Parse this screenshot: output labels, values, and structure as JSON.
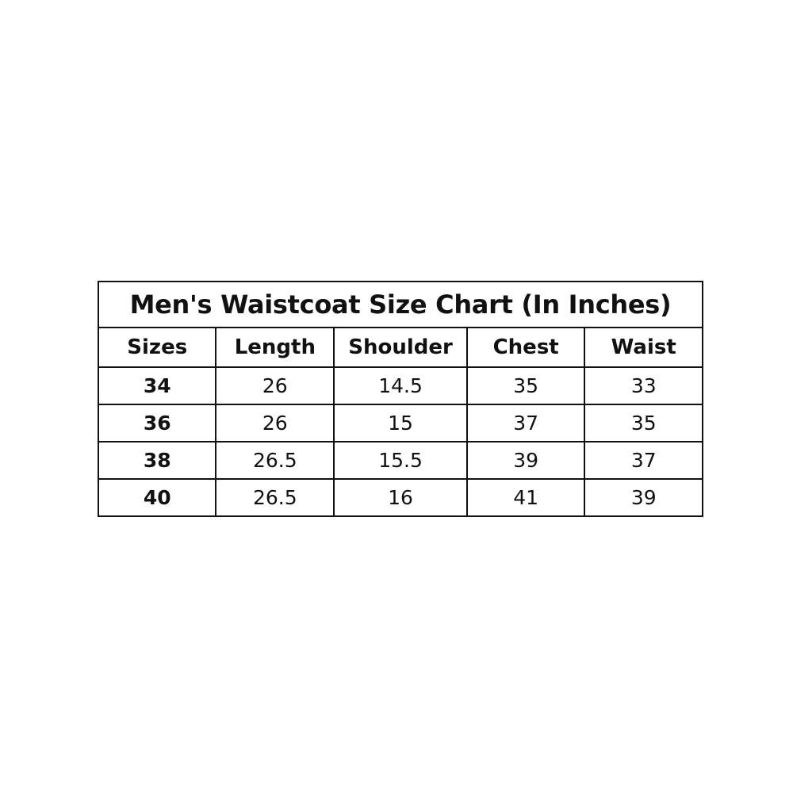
{
  "title": "Men's Waistcoat Size Chart (In Inches)",
  "headers": [
    "Sizes",
    "Length",
    "Shoulder",
    "Chest",
    "Waist"
  ],
  "rows": [
    [
      "34",
      "26",
      "14.5",
      "35",
      "33"
    ],
    [
      "36",
      "26",
      "15",
      "37",
      "35"
    ],
    [
      "38",
      "26.5",
      "15.5",
      "39",
      "37"
    ],
    [
      "40",
      "26.5",
      "16",
      "41",
      "39"
    ]
  ]
}
